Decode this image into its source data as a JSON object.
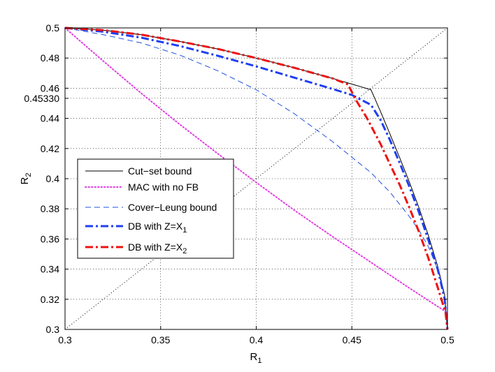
{
  "chart_data": {
    "type": "line",
    "title": "",
    "xlabel": "R",
    "xlabel_sub": "1",
    "ylabel": "R",
    "ylabel_sub": "2",
    "xlim": [
      0.3,
      0.5
    ],
    "ylim": [
      0.3,
      0.5
    ],
    "grid": true,
    "legend_position": "center-left",
    "x_ticks": [
      0.3,
      0.35,
      0.4,
      0.45,
      0.5
    ],
    "x_tick_labels": [
      "0.3",
      "0.35",
      "0.4",
      "0.45",
      "0.5"
    ],
    "y_ticks": [
      0.3,
      0.32,
      0.34,
      0.36,
      0.38,
      0.4,
      0.42,
      0.44,
      0.4533,
      0.46,
      0.48,
      0.5
    ],
    "y_tick_labels": [
      "0.3",
      "0.32",
      "0.34",
      "0.36",
      "0.38",
      "0.4",
      "0.42",
      "0.44",
      "0.45330",
      "0.46",
      "0.48",
      "0.5"
    ],
    "reference_line": {
      "name": "diagonal",
      "points": [
        [
          0.3,
          0.3
        ],
        [
          0.5,
          0.5
        ]
      ]
    },
    "series": [
      {
        "name": "Cut-set bound",
        "legend_label": "Cut−set bound",
        "legend_sub": "",
        "color": "#000000",
        "style": "solid",
        "width": 1,
        "points": [
          [
            0.3,
            0.5
          ],
          [
            0.32,
            0.4985
          ],
          [
            0.34,
            0.4955
          ],
          [
            0.36,
            0.491
          ],
          [
            0.38,
            0.486
          ],
          [
            0.4,
            0.48
          ],
          [
            0.42,
            0.4735
          ],
          [
            0.44,
            0.4665
          ],
          [
            0.46,
            0.459
          ],
          [
            0.465,
            0.4445
          ],
          [
            0.47,
            0.4295
          ],
          [
            0.475,
            0.414
          ],
          [
            0.48,
            0.398
          ],
          [
            0.485,
            0.381
          ],
          [
            0.49,
            0.3625
          ],
          [
            0.495,
            0.3415
          ],
          [
            0.4985,
            0.323
          ],
          [
            0.5,
            0.3
          ]
        ]
      },
      {
        "name": "MAC with no FB",
        "legend_label": "MAC with no FB",
        "legend_sub": "",
        "color": "#e040e0",
        "style": "dotted",
        "width": 2,
        "points": [
          [
            0.3,
            0.5
          ],
          [
            0.32,
            0.478
          ],
          [
            0.34,
            0.4565
          ],
          [
            0.36,
            0.436
          ],
          [
            0.38,
            0.4165
          ],
          [
            0.4,
            0.3975
          ],
          [
            0.42,
            0.379
          ],
          [
            0.44,
            0.3615
          ],
          [
            0.46,
            0.3445
          ],
          [
            0.48,
            0.3275
          ],
          [
            0.5,
            0.311
          ]
        ]
      },
      {
        "name": "Cover-Leung bound",
        "legend_label": "Cover−Leung bound",
        "legend_sub": "",
        "color": "#2050e0",
        "style": "dashed",
        "width": 1,
        "points": [
          [
            0.3,
            0.5
          ],
          [
            0.32,
            0.4955
          ],
          [
            0.34,
            0.49
          ],
          [
            0.36,
            0.482
          ],
          [
            0.38,
            0.4715
          ],
          [
            0.4,
            0.459
          ],
          [
            0.42,
            0.443
          ],
          [
            0.44,
            0.4245
          ],
          [
            0.46,
            0.404
          ],
          [
            0.47,
            0.391
          ],
          [
            0.48,
            0.375
          ],
          [
            0.485,
            0.366
          ],
          [
            0.49,
            0.355
          ],
          [
            0.495,
            0.3395
          ],
          [
            0.498,
            0.3245
          ],
          [
            0.5,
            0.3
          ]
        ]
      },
      {
        "name": "DB with Z=X1",
        "legend_label": "DB with Z=X",
        "legend_sub": "1",
        "color": "#1f3ff0",
        "style": "dashdot",
        "width": 3,
        "points": [
          [
            0.3,
            0.5
          ],
          [
            0.32,
            0.4975
          ],
          [
            0.34,
            0.4935
          ],
          [
            0.36,
            0.488
          ],
          [
            0.38,
            0.4815
          ],
          [
            0.4,
            0.4745
          ],
          [
            0.42,
            0.467
          ],
          [
            0.44,
            0.4595
          ],
          [
            0.45,
            0.4555
          ],
          [
            0.46,
            0.449
          ],
          [
            0.465,
            0.439
          ],
          [
            0.47,
            0.4255
          ],
          [
            0.475,
            0.4105
          ],
          [
            0.48,
            0.395
          ],
          [
            0.485,
            0.378
          ],
          [
            0.49,
            0.3595
          ],
          [
            0.495,
            0.3395
          ],
          [
            0.4985,
            0.3205
          ],
          [
            0.5,
            0.3
          ]
        ]
      },
      {
        "name": "DB with Z=X2",
        "legend_label": "DB with Z=X",
        "legend_sub": "2",
        "color": "#ee1111",
        "style": "dashdot",
        "width": 3,
        "points": [
          [
            0.3,
            0.5
          ],
          [
            0.32,
            0.4985
          ],
          [
            0.34,
            0.4955
          ],
          [
            0.36,
            0.491
          ],
          [
            0.38,
            0.486
          ],
          [
            0.4,
            0.48
          ],
          [
            0.42,
            0.4735
          ],
          [
            0.44,
            0.4665
          ],
          [
            0.448,
            0.4625
          ],
          [
            0.452,
            0.4525
          ],
          [
            0.458,
            0.44
          ],
          [
            0.465,
            0.423
          ],
          [
            0.47,
            0.4095
          ],
          [
            0.475,
            0.396
          ],
          [
            0.48,
            0.381
          ],
          [
            0.485,
            0.365
          ],
          [
            0.49,
            0.3475
          ],
          [
            0.495,
            0.3275
          ],
          [
            0.499,
            0.311
          ],
          [
            0.5,
            0.3
          ]
        ]
      }
    ]
  }
}
